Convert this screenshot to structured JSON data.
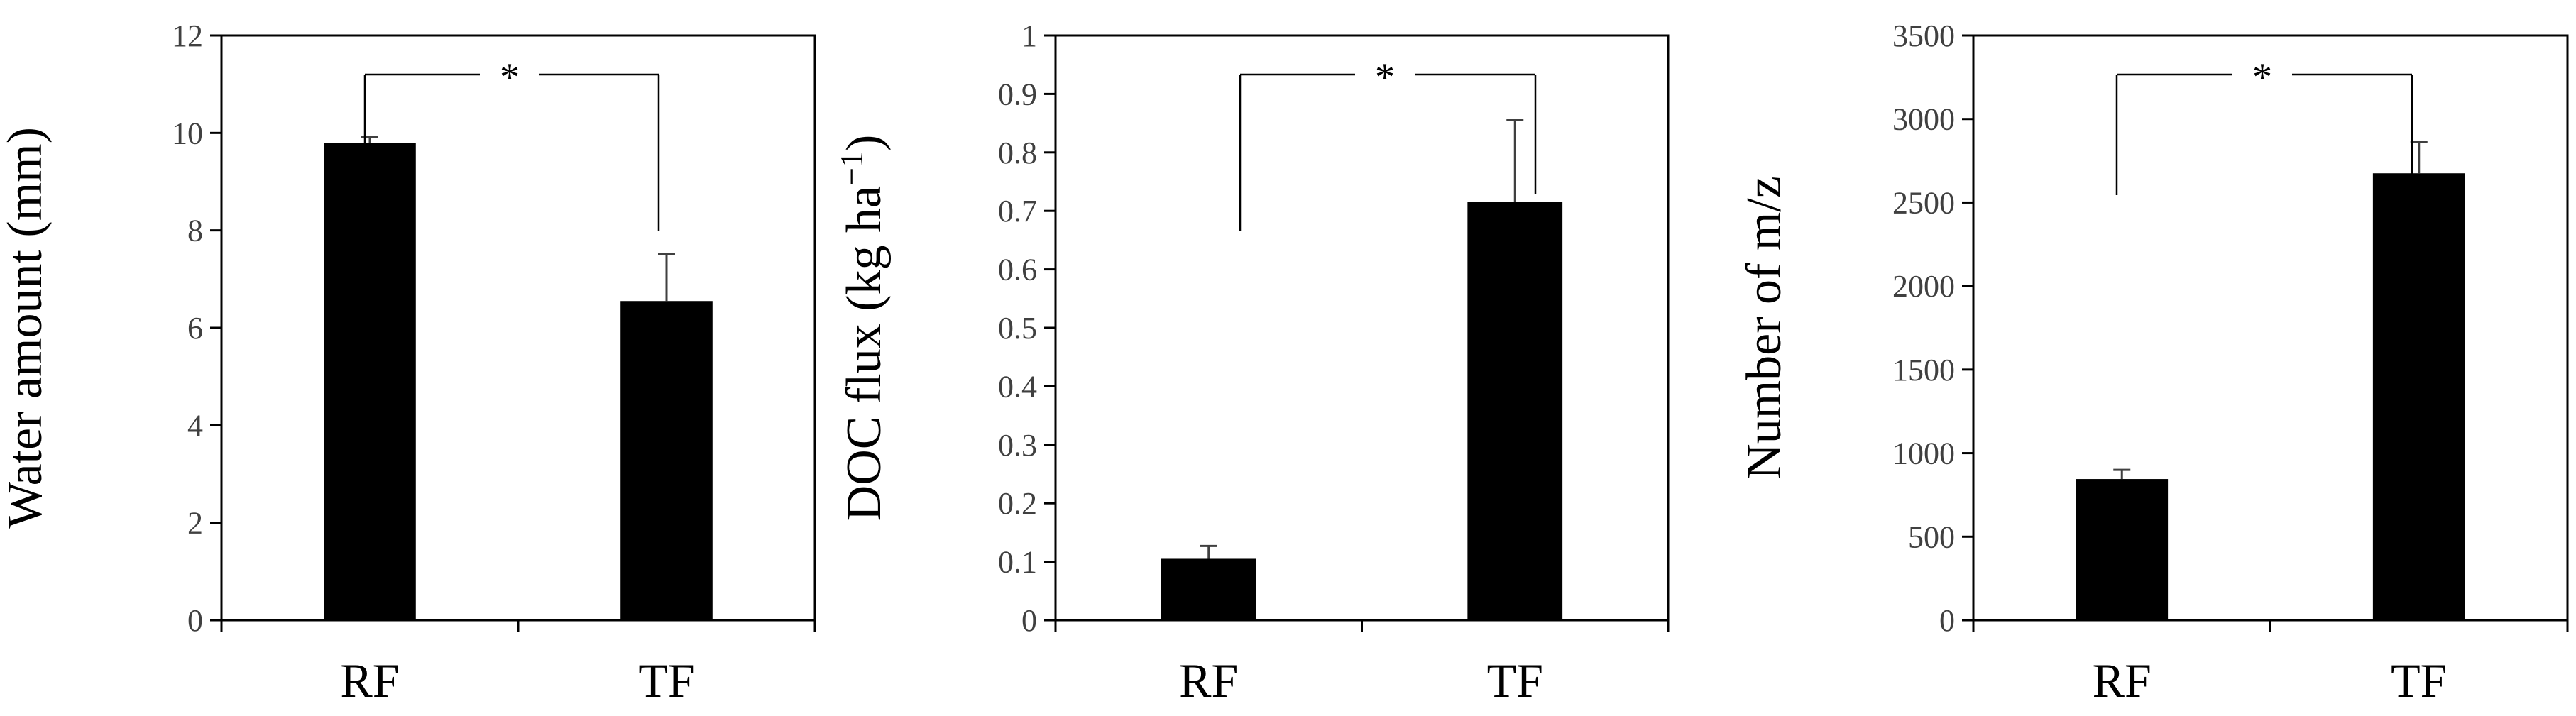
{
  "chart_data": [
    {
      "type": "bar",
      "categories": [
        "RF",
        "TF"
      ],
      "values": [
        9.8,
        6.55
      ],
      "errors": [
        0.12,
        0.97
      ],
      "ylabel": "Water amount (mm)",
      "ylim": [
        0,
        12
      ],
      "yticks": [
        0,
        2,
        4,
        6,
        8,
        10,
        12
      ],
      "ytick_labels": [
        "0",
        "2",
        "4",
        "6",
        "8",
        "10",
        "12"
      ],
      "significance": "*",
      "bar_color": "#000000",
      "frame": true,
      "grid": false
    },
    {
      "type": "bar",
      "categories": [
        "RF",
        "TF"
      ],
      "values": [
        0.105,
        0.715
      ],
      "errors": [
        0.022,
        0.14
      ],
      "ylabel": "DOC flux (kg ha",
      "ylabel_sup": "−1",
      "ylabel_end": ")",
      "ylim": [
        0,
        1
      ],
      "yticks": [
        0,
        0.1,
        0.2,
        0.3,
        0.4,
        0.5,
        0.6,
        0.7,
        0.8,
        0.9,
        1
      ],
      "ytick_labels": [
        "0",
        "0.1",
        "0.2",
        "0.3",
        "0.4",
        "0.5",
        "0.6",
        "0.7",
        "0.8",
        "0.9",
        "1"
      ],
      "significance": "*",
      "bar_color": "#000000",
      "frame": true,
      "grid": false
    },
    {
      "type": "bar",
      "categories": [
        "RF",
        "TF"
      ],
      "values": [
        845,
        2675
      ],
      "errors": [
        55,
        190
      ],
      "ylabel": "Number of m/z",
      "ylim": [
        0,
        3500
      ],
      "yticks": [
        0,
        500,
        1000,
        1500,
        2000,
        2500,
        3000,
        3500
      ],
      "ytick_labels": [
        "0",
        "500",
        "1000",
        "1500",
        "2000",
        "2500",
        "3000",
        "3500"
      ],
      "significance": "*",
      "bar_color": "#000000",
      "frame": true,
      "grid": false
    }
  ]
}
